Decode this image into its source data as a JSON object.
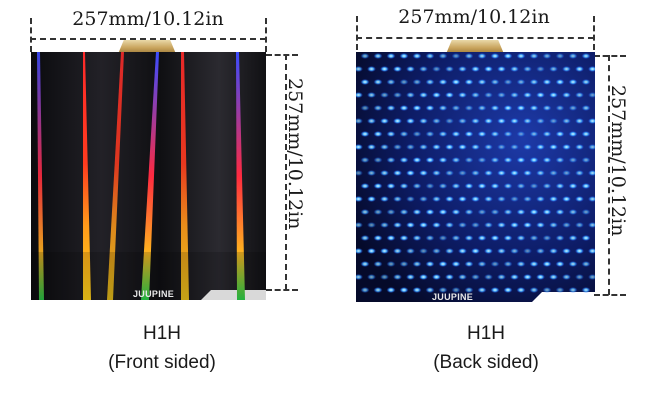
{
  "front": {
    "width_label": "257mm/10.12in",
    "height_label": "257mm/10.12in",
    "brand": "JUUPINE",
    "model": "H1H",
    "side": "(Front sided)"
  },
  "back": {
    "width_label": "257mm/10.12in",
    "height_label": "257mm/10.12in",
    "brand": "JUUPINE",
    "model": "H1H",
    "side": "(Back sided)"
  }
}
